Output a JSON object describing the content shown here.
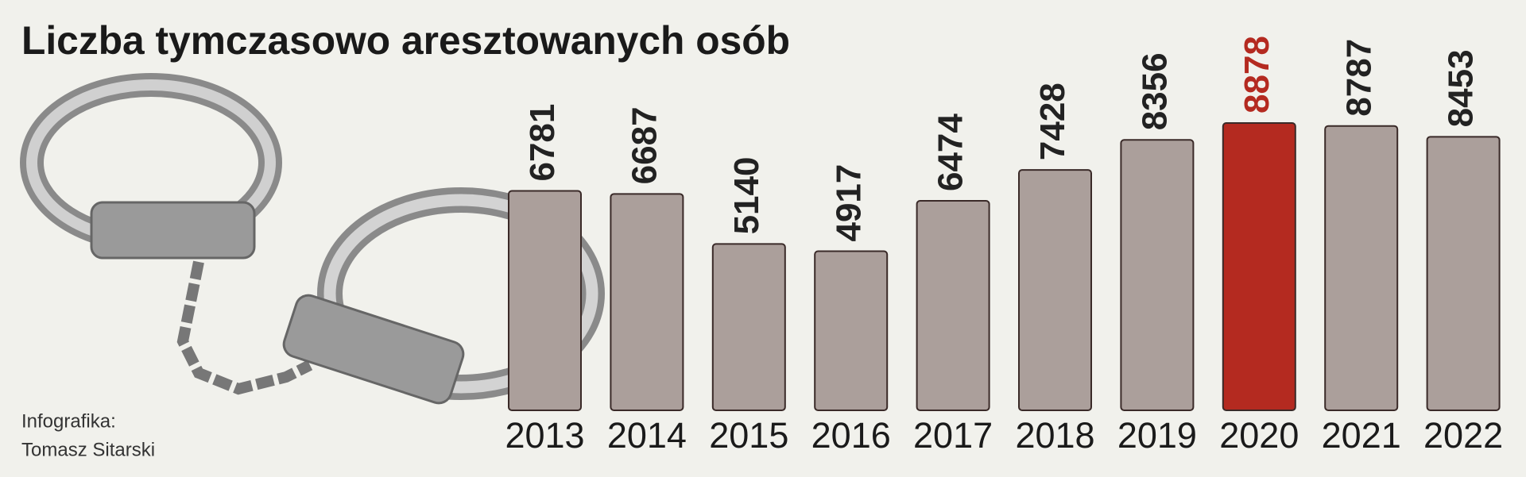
{
  "chart_data": {
    "type": "bar",
    "title": "Liczba tymczasowo aresztowanych osób",
    "categories": [
      "2013",
      "2014",
      "2015",
      "2016",
      "2017",
      "2018",
      "2019",
      "2020",
      "2021",
      "2022"
    ],
    "values": [
      6781,
      6687,
      5140,
      4917,
      6474,
      7428,
      8356,
      8878,
      8787,
      8453
    ],
    "colors": [
      "#ab9f9b",
      "#ab9f9b",
      "#ab9f9b",
      "#ab9f9b",
      "#ab9f9b",
      "#ab9f9b",
      "#ab9f9b",
      "#b42a20",
      "#ab9f9b",
      "#ab9f9b"
    ],
    "label_colors": [
      "#222222",
      "#222222",
      "#222222",
      "#222222",
      "#222222",
      "#222222",
      "#222222",
      "#b42a20",
      "#222222",
      "#222222"
    ],
    "source": [
      "Infografika:",
      "Tomasz Sitarski"
    ]
  }
}
